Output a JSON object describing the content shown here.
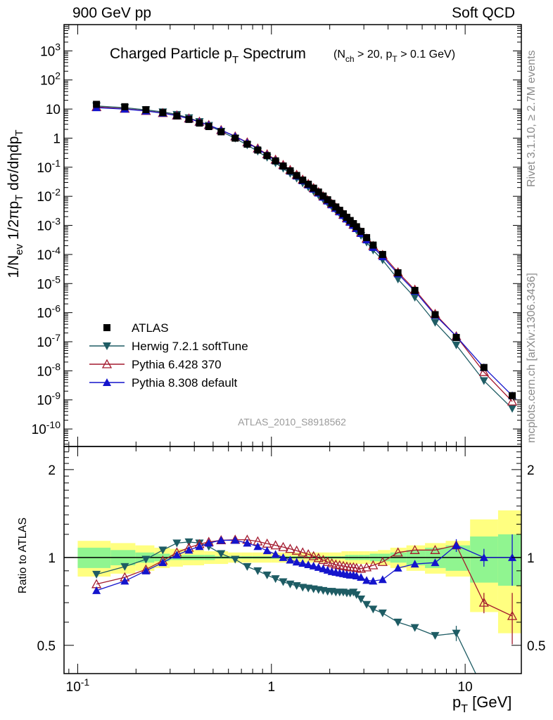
{
  "header": {
    "left": "900 GeV pp",
    "right": "Soft QCD"
  },
  "side": {
    "rivet": "Rivet 3.1.10, ≥ 2.7M events",
    "mcplots": "mcplots.cern.ch [arXiv:1306.3436]"
  },
  "chart_data": [
    {
      "type": "scatter",
      "panel": "main",
      "title_main": "Charged Particle p",
      "title_main_sub": "T",
      "title_main_word": " Spectrum",
      "title_cond_1": "(N",
      "title_cond_1_sub": "ch",
      "title_cond_2": " > 20, p",
      "title_cond_2_sub": "T",
      "title_cond_3": " > 0.1 GeV)",
      "ylabel": "1/N_ev 1/2πp_T dσ/dηdp_T",
      "watermark": "ATLAS_2010_S8918562",
      "xscale": "log",
      "yscale": "log",
      "xlim": [
        0.085,
        19.5
      ],
      "ylim": [
        2.5e-11,
        8000
      ],
      "y_tick_labels": [
        "10^{-10}",
        "10^{-9}",
        "10^{-8}",
        "10^{-7}",
        "10^{-6}",
        "10^{-5}",
        "10^{-4}",
        "10^{-3}",
        "10^{-2}",
        "10^{-1}",
        "1",
        "10",
        "10^{2}",
        "10^{3}"
      ],
      "legend_position": "bottom-left",
      "x": [
        0.125,
        0.175,
        0.225,
        0.275,
        0.325,
        0.375,
        0.425,
        0.475,
        0.55,
        0.65,
        0.75,
        0.85,
        0.95,
        1.05,
        1.15,
        1.25,
        1.35,
        1.45,
        1.55,
        1.65,
        1.75,
        1.85,
        1.95,
        2.05,
        2.15,
        2.25,
        2.35,
        2.45,
        2.55,
        2.65,
        2.75,
        2.9,
        3.1,
        3.35,
        3.75,
        4.5,
        5.5,
        7.0,
        9.0,
        12.5,
        17.5
      ],
      "series": [
        {
          "name": "ATLAS",
          "color": "#000000",
          "marker": "square",
          "y": [
            14.5,
            12,
            9.5,
            7.5,
            5.8,
            4.4,
            3.3,
            2.5,
            1.65,
            1.0,
            0.62,
            0.39,
            0.25,
            0.165,
            0.11,
            0.075,
            0.052,
            0.036,
            0.026,
            0.019,
            0.014,
            0.0102,
            0.0076,
            0.0057,
            0.0043,
            0.0033,
            0.0025,
            0.0019,
            0.00147,
            0.00115,
            0.0009,
            0.00062,
            0.00038,
            0.00021,
            0.0001,
            2.35e-05,
            5.8e-06,
            8.5e-07,
            1.4e-07,
            1.3e-08,
            1.4e-09
          ]
        },
        {
          "name": "Herwig 7.2.1 softTune",
          "color": "#1e5c64",
          "marker": "triangle-down",
          "ratio": [
            0.875,
            0.93,
            0.985,
            1.06,
            1.12,
            1.13,
            1.12,
            1.09,
            1.03,
            0.985,
            0.93,
            0.9,
            0.87,
            0.845,
            0.825,
            0.81,
            0.8,
            0.79,
            0.785,
            0.78,
            0.775,
            0.77,
            0.765,
            0.765,
            0.76,
            0.76,
            0.76,
            0.755,
            0.755,
            0.76,
            0.745,
            0.72,
            0.69,
            0.665,
            0.645,
            0.6,
            0.575,
            0.54,
            0.55,
            0.35,
            0.36
          ]
        },
        {
          "name": "Pythia 6.428 370",
          "color": "#a31a2e",
          "marker": "triangle-open",
          "ratio": [
            0.81,
            0.855,
            0.91,
            0.975,
            1.04,
            1.08,
            1.11,
            1.13,
            1.145,
            1.15,
            1.15,
            1.135,
            1.115,
            1.1,
            1.085,
            1.07,
            1.055,
            1.04,
            1.025,
            1.01,
            0.995,
            0.98,
            0.965,
            0.955,
            0.945,
            0.94,
            0.935,
            0.93,
            0.925,
            0.925,
            0.92,
            0.915,
            0.925,
            0.94,
            0.965,
            1.04,
            1.06,
            1.06,
            1.1,
            0.7,
            0.63
          ]
        },
        {
          "name": "Pythia 8.308 default",
          "color": "#1414cc",
          "marker": "triangle-up",
          "ratio": [
            0.77,
            0.83,
            0.9,
            0.96,
            1.02,
            1.06,
            1.09,
            1.12,
            1.145,
            1.145,
            1.12,
            1.09,
            1.055,
            1.025,
            1.0,
            0.98,
            0.965,
            0.955,
            0.945,
            0.935,
            0.925,
            0.915,
            0.905,
            0.895,
            0.89,
            0.885,
            0.88,
            0.875,
            0.87,
            0.87,
            0.865,
            0.855,
            0.835,
            0.83,
            0.84,
            0.92,
            0.95,
            0.96,
            1.1,
            1.0,
            1.0
          ]
        }
      ]
    },
    {
      "type": "line",
      "panel": "ratio",
      "ylabel": "Ratio to ATLAS",
      "xlabel": "p_T  [GeV]",
      "xscale": "log",
      "ylim": [
        0.4,
        2.4
      ],
      "x_tick_labels": [
        "10^{-1}",
        "1",
        "10"
      ],
      "y_tick_labels": [
        "0.5",
        "1",
        "2"
      ],
      "reference_line": 1,
      "band_stat_halfwidth": [
        0.08,
        0.06,
        0.04,
        0.03,
        0.02,
        0.02,
        0.02,
        0.02,
        0.01,
        0.01,
        0.01,
        0.01,
        0.01,
        0.01,
        0.01,
        0.01,
        0.01,
        0.01,
        0.01,
        0.01,
        0.01,
        0.01,
        0.01,
        0.01,
        0.01,
        0.01,
        0.01,
        0.02,
        0.02,
        0.02,
        0.02,
        0.02,
        0.02,
        0.03,
        0.03,
        0.04,
        0.06,
        0.08,
        0.1,
        0.18,
        0.2
      ],
      "band_total_halfwidth": [
        0.14,
        0.12,
        0.1,
        0.08,
        0.07,
        0.06,
        0.06,
        0.05,
        0.05,
        0.04,
        0.04,
        0.04,
        0.04,
        0.04,
        0.04,
        0.04,
        0.04,
        0.04,
        0.04,
        0.04,
        0.04,
        0.04,
        0.04,
        0.04,
        0.04,
        0.04,
        0.05,
        0.05,
        0.05,
        0.05,
        0.05,
        0.05,
        0.05,
        0.05,
        0.06,
        0.08,
        0.1,
        0.12,
        0.14,
        0.35,
        0.45
      ]
    }
  ]
}
